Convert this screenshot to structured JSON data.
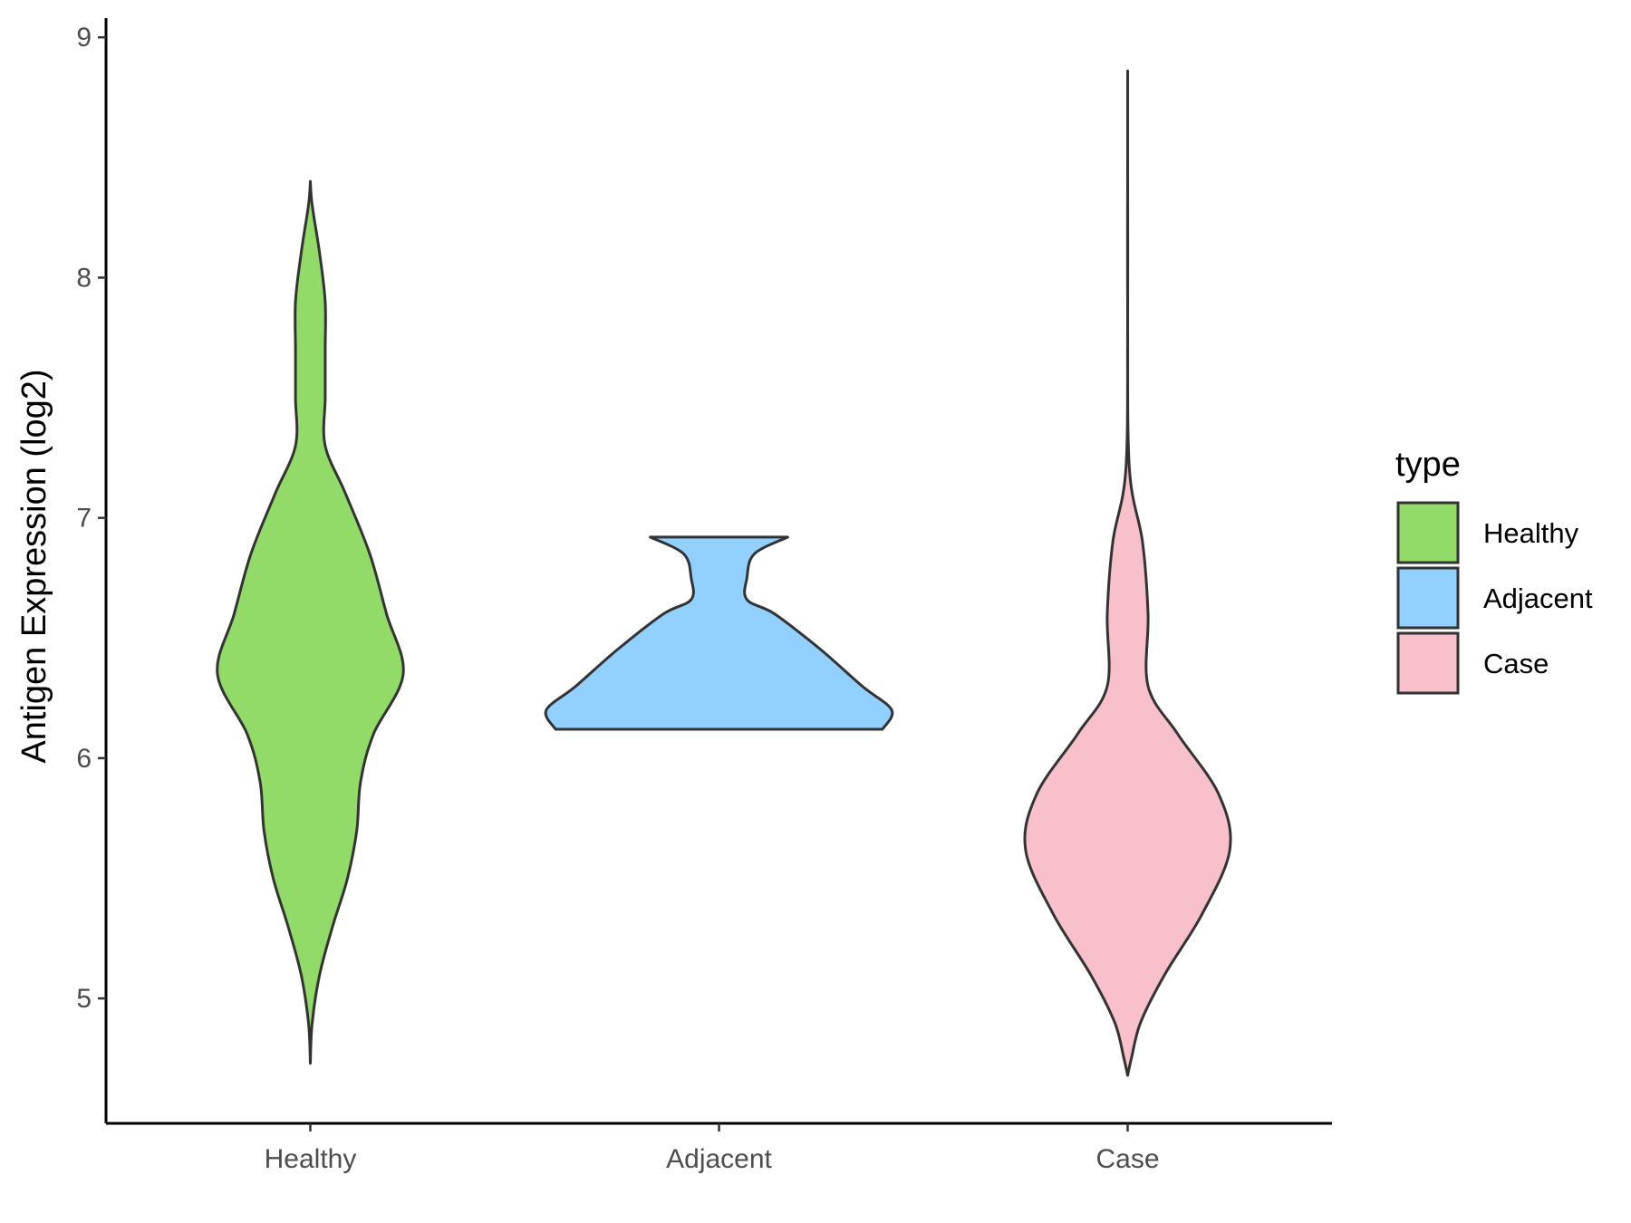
{
  "chart_data": {
    "type": "violin",
    "title": "",
    "xlabel": "",
    "ylabel": "Antigen Expression (log2)",
    "ylim": [
      4.48,
      9.08
    ],
    "yticks": [
      5,
      6,
      7,
      8,
      9
    ],
    "categories": [
      "Healthy",
      "Adjacent",
      "Case"
    ],
    "legend": {
      "title": "type",
      "position": "right",
      "items": [
        {
          "label": "Healthy",
          "color": "#93DB69"
        },
        {
          "label": "Adjacent",
          "color": "#92D1FF"
        },
        {
          "label": "Case",
          "color": "#F8C0CB"
        }
      ]
    },
    "series": [
      {
        "category": "Healthy",
        "color": "#93DB69",
        "min": 4.73,
        "max": 8.4,
        "profile": [
          [
            4.73,
            0.0
          ],
          [
            4.9,
            0.01
          ],
          [
            5.1,
            0.05
          ],
          [
            5.3,
            0.12
          ],
          [
            5.5,
            0.2
          ],
          [
            5.7,
            0.25
          ],
          [
            5.9,
            0.27
          ],
          [
            6.1,
            0.34
          ],
          [
            6.35,
            0.5
          ],
          [
            6.6,
            0.41
          ],
          [
            6.85,
            0.32
          ],
          [
            7.1,
            0.19
          ],
          [
            7.3,
            0.08
          ],
          [
            7.5,
            0.08
          ],
          [
            7.7,
            0.08
          ],
          [
            7.9,
            0.08
          ],
          [
            8.1,
            0.05
          ],
          [
            8.3,
            0.01
          ],
          [
            8.4,
            0.0
          ]
        ]
      },
      {
        "category": "Adjacent",
        "color": "#92D1FF",
        "min": 6.12,
        "max": 6.92,
        "profile": [
          [
            6.12,
            0.88
          ],
          [
            6.2,
            0.93
          ],
          [
            6.3,
            0.77
          ],
          [
            6.45,
            0.55
          ],
          [
            6.6,
            0.3
          ],
          [
            6.66,
            0.15
          ],
          [
            6.75,
            0.15
          ],
          [
            6.85,
            0.19
          ],
          [
            6.92,
            0.37
          ]
        ]
      },
      {
        "category": "Case",
        "color": "#F8C0CB",
        "min": 4.68,
        "max": 8.86,
        "profile": [
          [
            4.68,
            0.0
          ],
          [
            4.75,
            0.02
          ],
          [
            4.9,
            0.07
          ],
          [
            5.1,
            0.2
          ],
          [
            5.35,
            0.4
          ],
          [
            5.62,
            0.55
          ],
          [
            5.85,
            0.49
          ],
          [
            6.1,
            0.27
          ],
          [
            6.3,
            0.11
          ],
          [
            6.6,
            0.11
          ],
          [
            6.9,
            0.08
          ],
          [
            7.2,
            0.01
          ],
          [
            7.8,
            0.0
          ],
          [
            8.5,
            0.0
          ],
          [
            8.86,
            0.0
          ]
        ]
      }
    ]
  }
}
